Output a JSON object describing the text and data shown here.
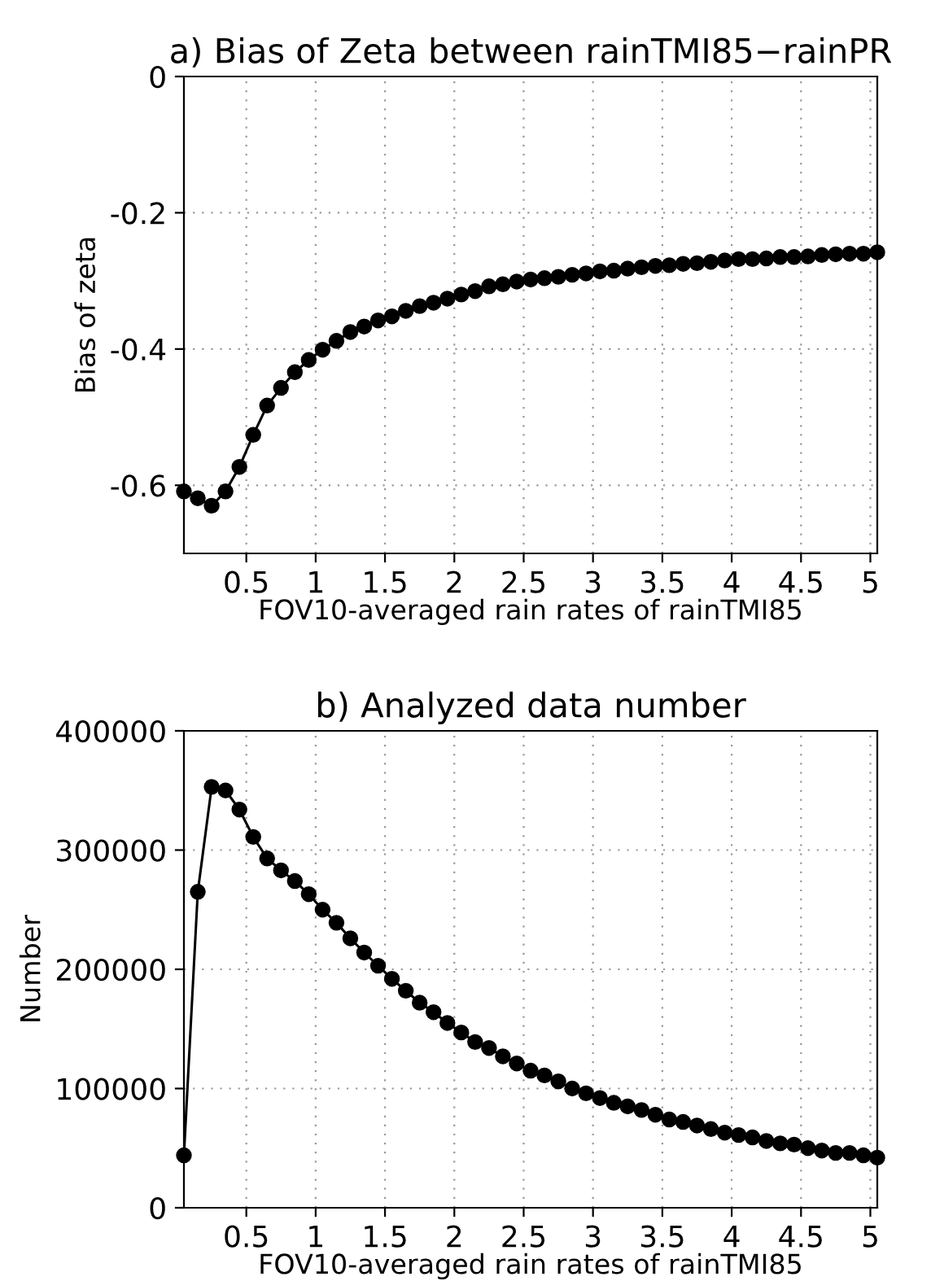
{
  "chart_data": [
    {
      "type": "line",
      "title": "a) Bias of Zeta between rainTMI85−rainPR",
      "xlabel": "FOV10-averaged rain rates of rainTMI85",
      "ylabel": "Bias of zeta",
      "x": [
        0.05,
        0.15,
        0.25,
        0.35,
        0.45,
        0.55,
        0.65,
        0.75,
        0.85,
        0.95,
        1.05,
        1.15,
        1.25,
        1.35,
        1.45,
        1.55,
        1.65,
        1.75,
        1.85,
        1.95,
        2.05,
        2.15,
        2.25,
        2.35,
        2.45,
        2.55,
        2.65,
        2.75,
        2.85,
        2.95,
        3.05,
        3.15,
        3.25,
        3.35,
        3.45,
        3.55,
        3.65,
        3.75,
        3.85,
        3.95,
        4.05,
        4.15,
        4.25,
        4.35,
        4.45,
        4.55,
        4.65,
        4.75,
        4.85,
        4.95,
        5.05
      ],
      "series": [
        {
          "color": "#000000",
          "values": [
            -0.609,
            -0.619,
            -0.63,
            -0.609,
            -0.573,
            -0.526,
            -0.483,
            -0.457,
            -0.434,
            -0.416,
            -0.401,
            -0.388,
            -0.375,
            -0.367,
            -0.358,
            -0.352,
            -0.344,
            -0.337,
            -0.332,
            -0.326,
            -0.32,
            -0.315,
            -0.308,
            -0.305,
            -0.301,
            -0.298,
            -0.296,
            -0.294,
            -0.291,
            -0.289,
            -0.286,
            -0.285,
            -0.282,
            -0.28,
            -0.278,
            -0.277,
            -0.275,
            -0.274,
            -0.272,
            -0.27,
            -0.268,
            -0.268,
            -0.267,
            -0.265,
            -0.265,
            -0.264,
            -0.262,
            -0.261,
            -0.26,
            -0.26,
            -0.258
          ]
        }
      ],
      "xlim": [
        0.05,
        5.05
      ],
      "xticks": [
        0.5,
        1,
        1.5,
        2,
        2.5,
        3,
        3.5,
        4,
        4.5,
        5
      ],
      "ylim": [
        -0.7,
        0
      ],
      "yticks": [
        0,
        -0.2,
        -0.4,
        -0.6
      ],
      "grid": true,
      "marker": "circle",
      "line_style": "solid"
    },
    {
      "type": "line",
      "title": "b) Analyzed data number",
      "xlabel": "FOV10-averaged rain rates of rainTMI85",
      "ylabel": "Number",
      "x": [
        0.05,
        0.15,
        0.25,
        0.35,
        0.45,
        0.55,
        0.65,
        0.75,
        0.85,
        0.95,
        1.05,
        1.15,
        1.25,
        1.35,
        1.45,
        1.55,
        1.65,
        1.75,
        1.85,
        1.95,
        2.05,
        2.15,
        2.25,
        2.35,
        2.45,
        2.55,
        2.65,
        2.75,
        2.85,
        2.95,
        3.05,
        3.15,
        3.25,
        3.35,
        3.45,
        3.55,
        3.65,
        3.75,
        3.85,
        3.95,
        4.05,
        4.15,
        4.25,
        4.35,
        4.45,
        4.55,
        4.65,
        4.75,
        4.85,
        4.95,
        5.05
      ],
      "series": [
        {
          "color": "#000000",
          "values": [
            44000,
            265000,
            353000,
            350000,
            334000,
            311000,
            293000,
            283000,
            274000,
            263000,
            250000,
            239000,
            226000,
            214000,
            203000,
            192000,
            182000,
            172000,
            164000,
            155000,
            147000,
            139000,
            134000,
            127000,
            121000,
            115000,
            111000,
            106000,
            100000,
            96000,
            92000,
            88000,
            85000,
            82000,
            78000,
            74000,
            72000,
            69000,
            66000,
            63000,
            61000,
            59000,
            56000,
            54000,
            53000,
            50000,
            48000,
            46000,
            46000,
            44000,
            42000
          ]
        }
      ],
      "xlim": [
        0.05,
        5.05
      ],
      "xticks": [
        0.5,
        1,
        1.5,
        2,
        2.5,
        3,
        3.5,
        4,
        4.5,
        5
      ],
      "ylim": [
        0,
        400000
      ],
      "yticks": [
        0,
        100000,
        200000,
        300000,
        400000
      ],
      "grid": true,
      "marker": "circle",
      "line_style": "solid"
    }
  ]
}
